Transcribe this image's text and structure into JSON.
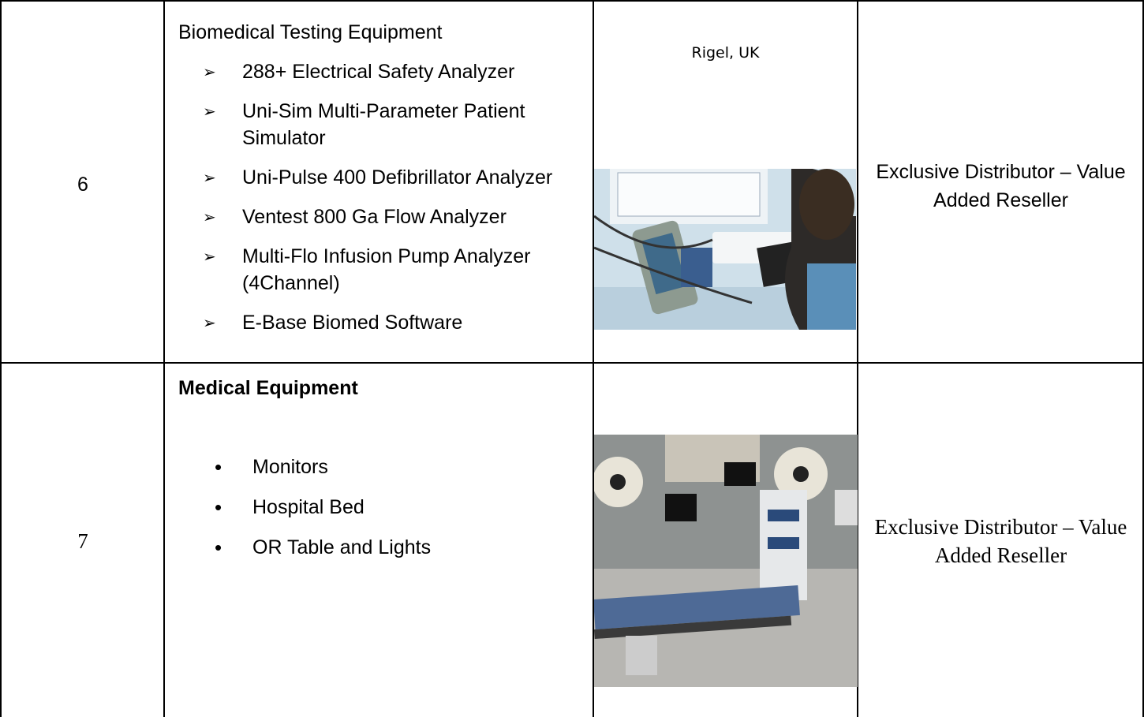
{
  "table": {
    "rows": [
      {
        "number": "6",
        "title": "Biomedical Testing Equipment",
        "items": [
          "288+ Electrical Safety Analyzer",
          "Uni-Sim Multi-Parameter Patient Simulator",
          "Uni-Pulse 400 Defibrillator Analyzer",
          "Ventest 800 Ga Flow Analyzer",
          "Multi-Flo Infusion Pump Analyzer (4Channel)",
          "E-Base Biomed Software"
        ],
        "supplier": "Rigel, UK",
        "role": "Exclusive Distributor – Value Added Reseller"
      },
      {
        "number": "7",
        "title": "Medical Equipment",
        "items": [
          "Monitors",
          "Hospital Bed",
          "OR Table and Lights"
        ],
        "role": "Exclusive Distributor – Value Added Reseller"
      }
    ]
  }
}
